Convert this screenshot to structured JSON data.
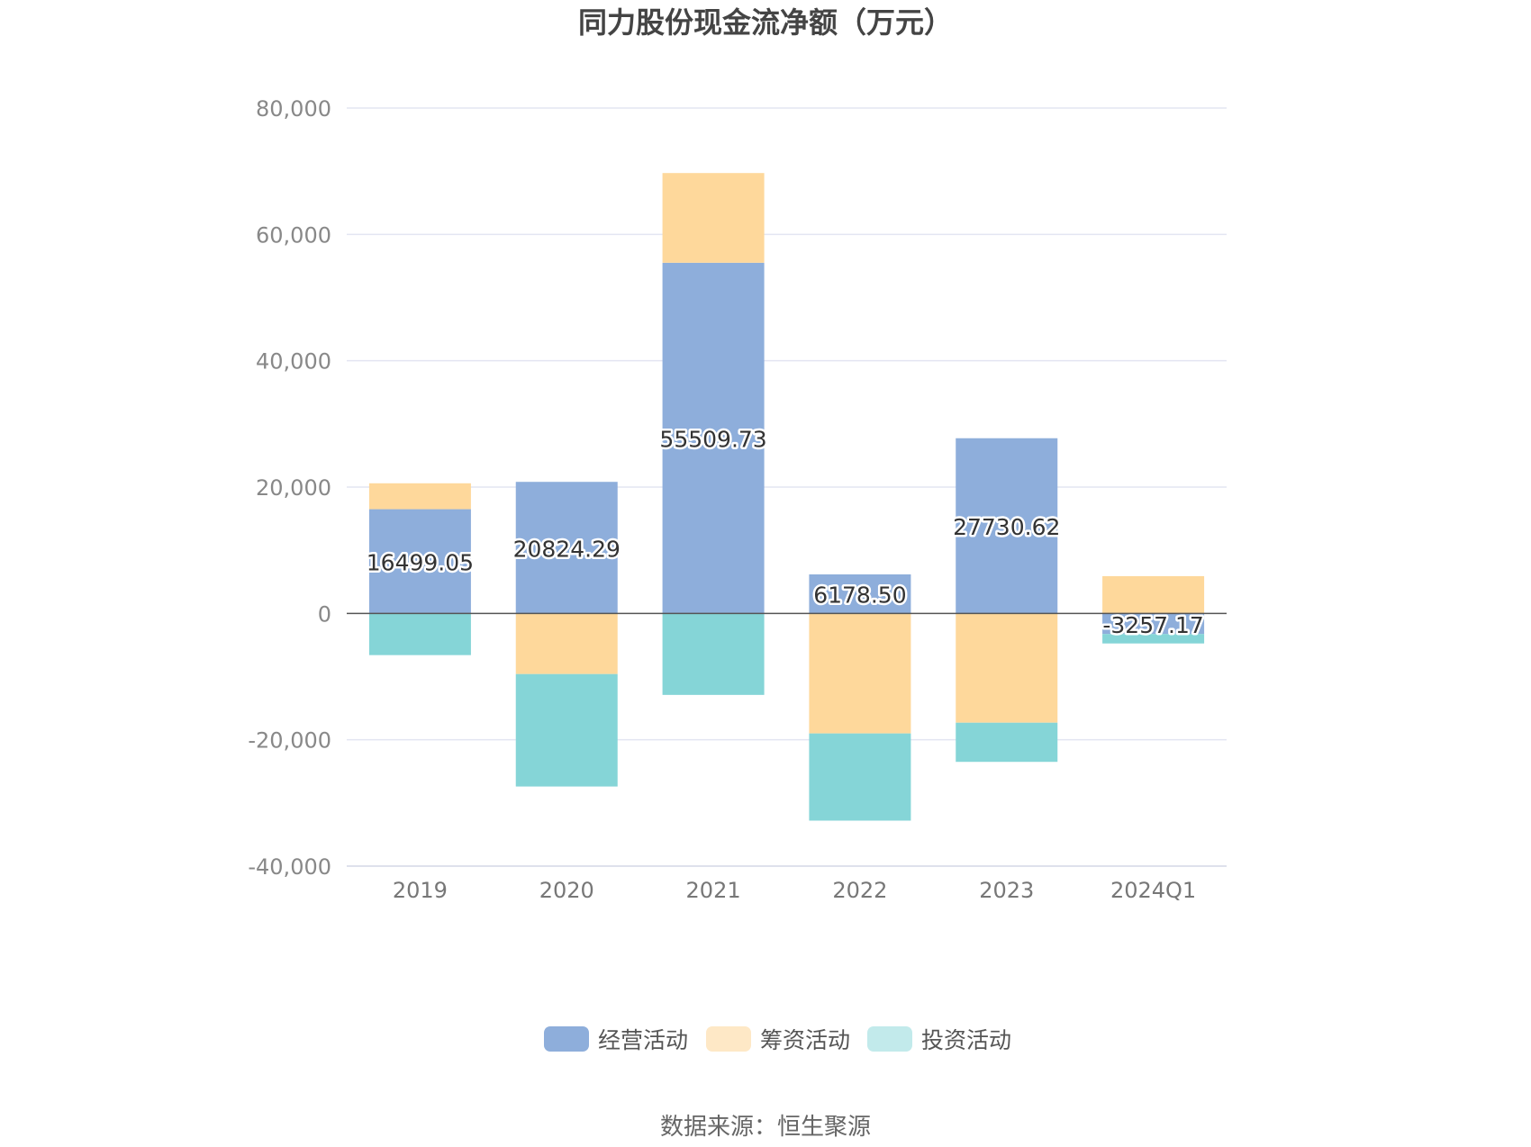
{
  "chart_data": {
    "type": "bar",
    "stacked": true,
    "title": "同力股份现金流净额（万元）",
    "categories": [
      "2019",
      "2020",
      "2021",
      "2022",
      "2023",
      "2024Q1"
    ],
    "ylim": [
      -40000,
      80000
    ],
    "yticks": [
      80000,
      60000,
      40000,
      20000,
      0,
      -20000,
      -40000
    ],
    "ytick_labels": [
      "80,000",
      "60,000",
      "40,000",
      "20,000",
      "0",
      "-20,000",
      "-40,000"
    ],
    "grid": true,
    "legend_position": "bottom",
    "series": [
      {
        "name": "经营活动",
        "color": "#8eaedb",
        "values": [
          16499.05,
          20824.29,
          55509.73,
          6178.5,
          27730.62,
          -3257.17
        ],
        "labels": [
          "16499.05",
          "20824.29",
          "55509.73",
          "6178.50",
          "27730.62",
          "-3257.17"
        ],
        "show_labels": true
      },
      {
        "name": "筹资活动",
        "color": "#fed89b",
        "values": [
          4100,
          -9600,
          14200,
          -19000,
          -17300,
          5900
        ],
        "show_labels": false
      },
      {
        "name": "投资活动",
        "color": "#85d5d7",
        "values": [
          -6600,
          -17800,
          -12900,
          -13800,
          -6200,
          -1500
        ],
        "show_labels": false
      }
    ],
    "legend_colors": [
      "#8eaedb",
      "#fee8c6",
      "#c2eaeb"
    ]
  },
  "source": "数据来源：恒生聚源"
}
